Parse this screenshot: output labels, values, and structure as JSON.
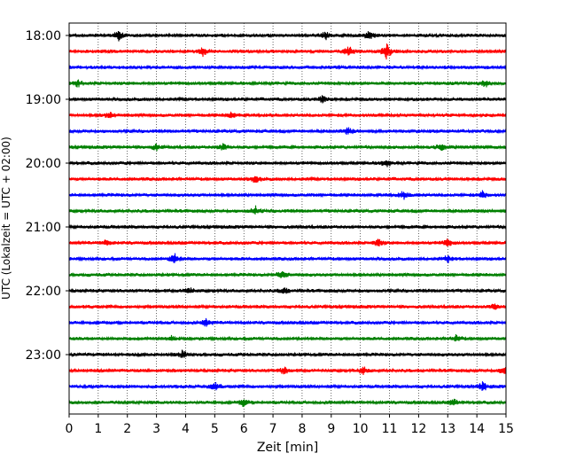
{
  "chart_data": {
    "type": "line",
    "title": "",
    "xlabel": "Zeit  [min]",
    "ylabel": "UTC (Lokalzeit = UTC + 02:00)",
    "xlim": [
      0,
      15
    ],
    "x_ticks": [
      "0",
      "1",
      "2",
      "3",
      "4",
      "5",
      "6",
      "7",
      "8",
      "9",
      "10",
      "11",
      "12",
      "13",
      "14",
      "15"
    ],
    "y_tick_labels": [
      "18:00",
      "19:00",
      "20:00",
      "21:00",
      "22:00",
      "23:00"
    ],
    "row_start": "18:00",
    "row_interval_minutes": 15,
    "row_count": 24,
    "row_colors": [
      "#000000",
      "#ff0000",
      "#0000ff",
      "#008000"
    ],
    "grid": "vertical-dotted",
    "legend": "none",
    "events": [
      {
        "row": 0,
        "minute": 1.7,
        "amp": 2.0
      },
      {
        "row": 0,
        "minute": 8.8,
        "amp": 1.8
      },
      {
        "row": 0,
        "minute": 10.3,
        "amp": 2.2
      },
      {
        "row": 1,
        "minute": 4.6,
        "amp": 1.6
      },
      {
        "row": 1,
        "minute": 9.6,
        "amp": 2.2
      },
      {
        "row": 1,
        "minute": 10.9,
        "amp": 3.5
      },
      {
        "row": 3,
        "minute": 0.3,
        "amp": 1.4
      },
      {
        "row": 3,
        "minute": 14.3,
        "amp": 1.5
      },
      {
        "row": 4,
        "minute": 8.7,
        "amp": 1.5
      },
      {
        "row": 5,
        "minute": 1.4,
        "amp": 1.6
      },
      {
        "row": 5,
        "minute": 5.6,
        "amp": 1.5
      },
      {
        "row": 6,
        "minute": 9.6,
        "amp": 1.5
      },
      {
        "row": 7,
        "minute": 3.0,
        "amp": 1.4
      },
      {
        "row": 7,
        "minute": 5.3,
        "amp": 1.6
      },
      {
        "row": 7,
        "minute": 12.8,
        "amp": 1.4
      },
      {
        "row": 8,
        "minute": 10.9,
        "amp": 1.8
      },
      {
        "row": 9,
        "minute": 6.4,
        "amp": 1.6
      },
      {
        "row": 10,
        "minute": 11.5,
        "amp": 1.6
      },
      {
        "row": 10,
        "minute": 14.2,
        "amp": 1.5
      },
      {
        "row": 11,
        "minute": 6.4,
        "amp": 1.8
      },
      {
        "row": 13,
        "minute": 1.3,
        "amp": 1.5
      },
      {
        "row": 13,
        "minute": 10.6,
        "amp": 1.6
      },
      {
        "row": 13,
        "minute": 13.0,
        "amp": 1.6
      },
      {
        "row": 14,
        "minute": 3.6,
        "amp": 2.6
      },
      {
        "row": 14,
        "minute": 13.0,
        "amp": 1.5
      },
      {
        "row": 15,
        "minute": 7.3,
        "amp": 1.8
      },
      {
        "row": 16,
        "minute": 4.1,
        "amp": 1.4
      },
      {
        "row": 16,
        "minute": 7.4,
        "amp": 1.5
      },
      {
        "row": 17,
        "minute": 14.6,
        "amp": 1.5
      },
      {
        "row": 18,
        "minute": 4.7,
        "amp": 1.6
      },
      {
        "row": 19,
        "minute": 3.5,
        "amp": 1.4
      },
      {
        "row": 19,
        "minute": 13.3,
        "amp": 1.5
      },
      {
        "row": 20,
        "minute": 3.9,
        "amp": 1.6
      },
      {
        "row": 21,
        "minute": 7.4,
        "amp": 1.6
      },
      {
        "row": 21,
        "minute": 10.1,
        "amp": 1.6
      },
      {
        "row": 21,
        "minute": 15.0,
        "amp": 2.2
      },
      {
        "row": 22,
        "minute": 5.0,
        "amp": 1.8
      },
      {
        "row": 22,
        "minute": 14.2,
        "amp": 2.0
      },
      {
        "row": 23,
        "minute": 6.0,
        "amp": 1.5
      },
      {
        "row": 23,
        "minute": 13.2,
        "amp": 1.6
      }
    ]
  }
}
